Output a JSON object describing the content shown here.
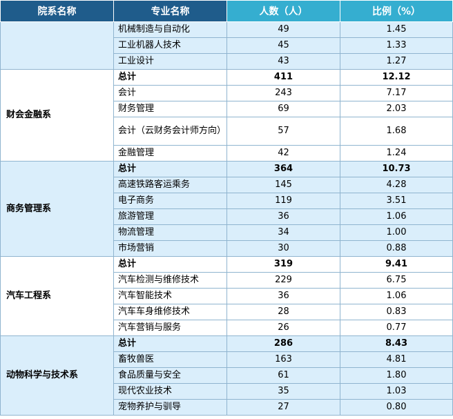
{
  "header": {
    "col_dept": "院系名称",
    "col_major": "专业名称",
    "col_count": "人数（人）",
    "col_ratio": "比例（%）"
  },
  "groups": [
    {
      "name": "",
      "rows": [
        {
          "major": "机械制造与自动化",
          "count": "49",
          "ratio": "1.45"
        },
        {
          "major": "工业机器人技术",
          "count": "45",
          "ratio": "1.33"
        },
        {
          "major": "工业设计",
          "count": "43",
          "ratio": "1.27"
        }
      ]
    },
    {
      "name": "财会金融系",
      "rows": [
        {
          "major": "总计",
          "count": "411",
          "ratio": "12.12"
        },
        {
          "major": "会计",
          "count": "243",
          "ratio": "7.17"
        },
        {
          "major": "财务管理",
          "count": "69",
          "ratio": "2.03"
        },
        {
          "major": "会计（云财务会计师方向）",
          "count": "57",
          "ratio": "1.68"
        },
        {
          "major": "金融管理",
          "count": "42",
          "ratio": "1.24"
        }
      ]
    },
    {
      "name": "商务管理系",
      "rows": [
        {
          "major": "总计",
          "count": "364",
          "ratio": "10.73"
        },
        {
          "major": "高速铁路客运乘务",
          "count": "145",
          "ratio": "4.28"
        },
        {
          "major": "电子商务",
          "count": "119",
          "ratio": "3.51"
        },
        {
          "major": "旅游管理",
          "count": "36",
          "ratio": "1.06"
        },
        {
          "major": "物流管理",
          "count": "34",
          "ratio": "1.00"
        },
        {
          "major": "市场营销",
          "count": "30",
          "ratio": "0.88"
        }
      ]
    },
    {
      "name": "汽车工程系",
      "rows": [
        {
          "major": "总计",
          "count": "319",
          "ratio": "9.41"
        },
        {
          "major": "汽车检测与维修技术",
          "count": "229",
          "ratio": "6.75"
        },
        {
          "major": "汽车智能技术",
          "count": "36",
          "ratio": "1.06"
        },
        {
          "major": "汽车车身维修技术",
          "count": "28",
          "ratio": "0.83"
        },
        {
          "major": "汽车营销与服务",
          "count": "26",
          "ratio": "0.77"
        }
      ]
    },
    {
      "name": "动物科学与技术系",
      "rows": [
        {
          "major": "总计",
          "count": "286",
          "ratio": "8.43"
        },
        {
          "major": "畜牧兽医",
          "count": "163",
          "ratio": "4.81"
        },
        {
          "major": "食品质量与安全",
          "count": "61",
          "ratio": "1.80"
        },
        {
          "major": "现代农业技术",
          "count": "35",
          "ratio": "1.03"
        },
        {
          "major": "宠物养护与驯导",
          "count": "27",
          "ratio": "0.80"
        }
      ]
    }
  ],
  "colors": {
    "header_dark": "#1f5c8b",
    "header_light": "#35aed0",
    "row_blue": "#daeefb",
    "row_white": "#ffffff",
    "border": "#8fb4cf"
  }
}
